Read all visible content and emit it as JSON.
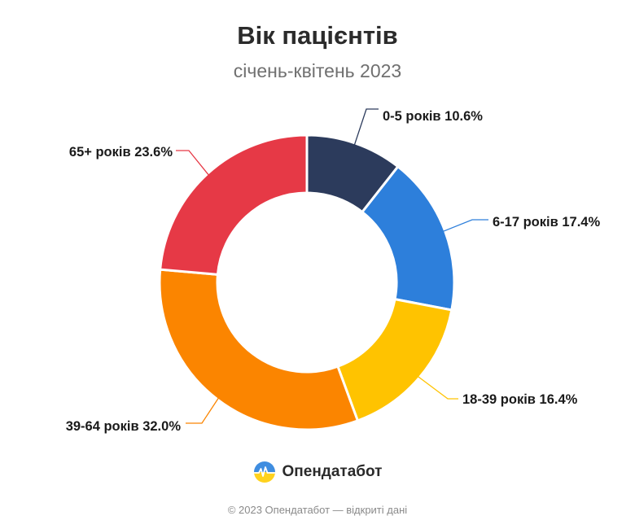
{
  "chart_data": {
    "type": "pie",
    "title": "Вік пацієнтів",
    "subtitle": "січень-квітень 2023",
    "slices": [
      {
        "label": "0-5 років",
        "value_text": "10.6%",
        "value": 10.6,
        "color": "#2c3b5c"
      },
      {
        "label": "6-17 років",
        "value_text": "17.4%",
        "value": 17.4,
        "color": "#2d7fdb"
      },
      {
        "label": "18-39 років",
        "value_text": "16.4%",
        "value": 16.4,
        "color": "#ffc300"
      },
      {
        "label": "39-64 років",
        "value_text": "32.0%",
        "value": 32.0,
        "color": "#fb8500"
      },
      {
        "label": "65+ років",
        "value_text": "23.6%",
        "value": 23.6,
        "color": "#e63946"
      }
    ]
  },
  "brand": {
    "name": "Опендатабот",
    "logo_icon": "opendatabot-logo-icon"
  },
  "footer": {
    "text": "© 2023 Опендатабот — відкриті дані"
  }
}
